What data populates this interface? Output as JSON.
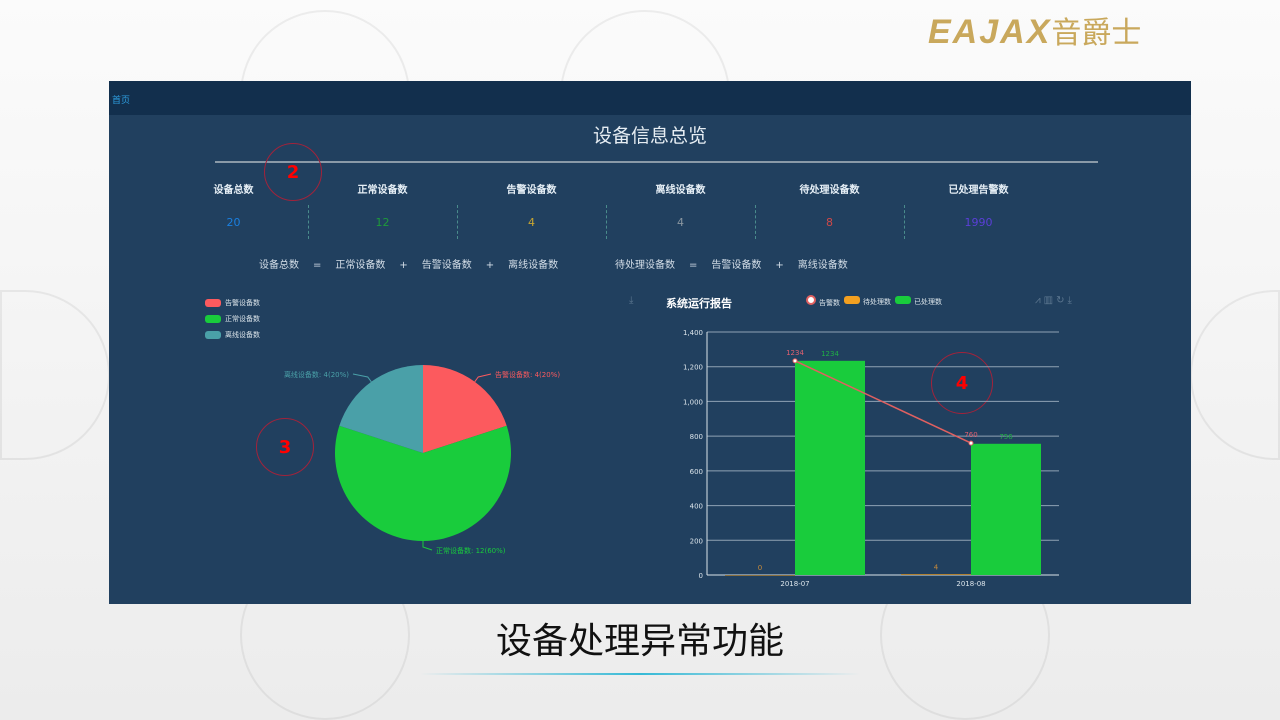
{
  "logo": {
    "latin": "EAJAX",
    "cn": "音爵士",
    "color": "#c9a85c"
  },
  "watermark": "EAJAX音爵士",
  "dashboard": {
    "breadcrumb": "首页",
    "title": "设备信息总览",
    "stats": [
      {
        "label": "设备总数",
        "value": "20",
        "color": "#1a7fe0"
      },
      {
        "label": "正常设备数",
        "value": "12",
        "color": "#1e9a3a"
      },
      {
        "label": "告警设备数",
        "value": "4",
        "color": "#c8a530"
      },
      {
        "label": "离线设备数",
        "value": "4",
        "color": "#8a96a0"
      },
      {
        "label": "待处理设备数",
        "value": "8",
        "color": "#d04848"
      },
      {
        "label": "已处理告警数",
        "value": "1990",
        "color": "#5b3fd8"
      }
    ],
    "formula1": [
      "设备总数",
      "=",
      "正常设备数",
      "+",
      "告警设备数",
      "+",
      "离线设备数"
    ],
    "formula2": [
      "待处理设备数",
      "=",
      "告警设备数",
      "+",
      "离线设备数"
    ],
    "markers": [
      "2",
      "3",
      "4"
    ]
  },
  "chart_data": [
    {
      "type": "pie",
      "legend": [
        "告警设备数",
        "正常设备数",
        "离线设备数"
      ],
      "legend_placement": "top-left",
      "slices": [
        {
          "name": "告警设备数",
          "value": 4,
          "label": "告警设备数: 4(20%)",
          "color": "#fc5a5e"
        },
        {
          "name": "正常设备数",
          "value": 12,
          "label": "正常设备数: 12(60%)",
          "color": "#19cc3c"
        },
        {
          "name": "离线设备数",
          "value": 4,
          "label": "离线设备数: 4(20%)",
          "color": "#4aa0a8"
        }
      ]
    },
    {
      "type": "bar",
      "title": "系统运行报告",
      "categories": [
        "2018-07",
        "2018-08"
      ],
      "ylim": [
        0,
        1400
      ],
      "yticks": [
        "0",
        "200",
        "400",
        "600",
        "800",
        "1,000",
        "1,200",
        "1,400"
      ],
      "grid": true,
      "legend_placement": "top",
      "series": [
        {
          "name": "告警数",
          "type": "line",
          "values": [
            1234,
            760
          ],
          "color": "#e06060"
        },
        {
          "name": "待处理数",
          "type": "bar",
          "values": [
            0,
            4
          ],
          "color": "#f3a020"
        },
        {
          "name": "已处理数",
          "type": "bar",
          "values": [
            1234,
            756
          ],
          "color": "#19cc3c"
        }
      ]
    }
  ],
  "caption": "设备处理异常功能"
}
